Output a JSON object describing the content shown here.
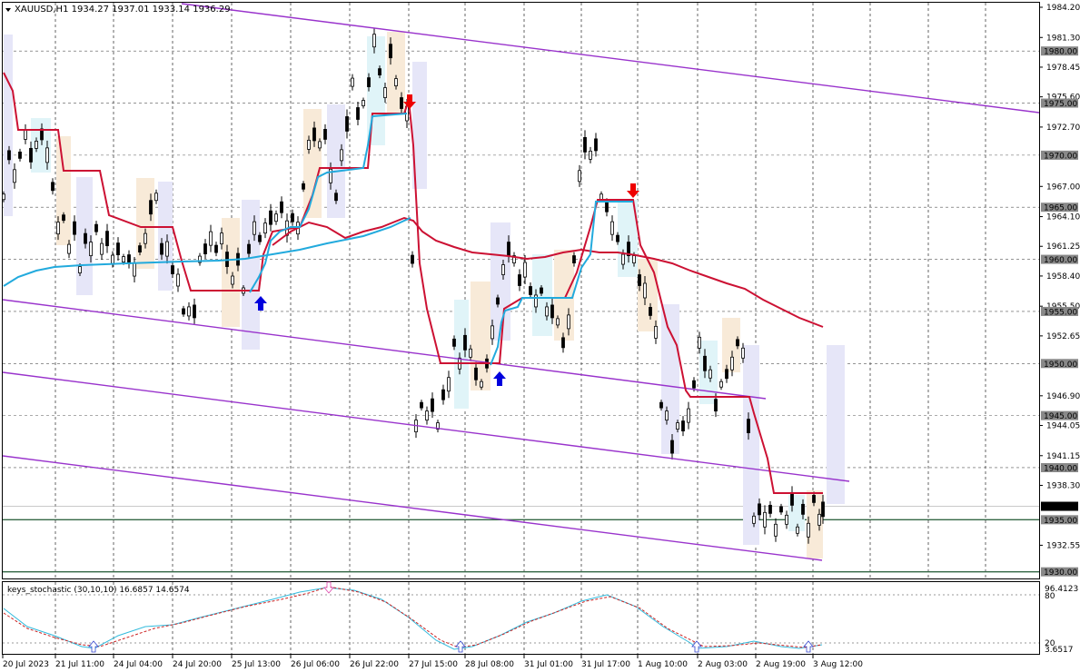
{
  "symbol_bar": {
    "text": "XAUUSD,H1  1934.27 1937.01 1933.14 1936.29"
  },
  "price_axis": {
    "labels": [
      "1984.20",
      "1981.30",
      "1978.45",
      "1975.60",
      "1972.70",
      "1967.00",
      "1964.10",
      "1961.25",
      "1958.40",
      "1955.50",
      "1952.65",
      "1946.90",
      "1944.05",
      "1941.15",
      "1938.30",
      "1932.55"
    ],
    "levels": [
      {
        "text": "1980.00",
        "price": 1980.0
      },
      {
        "text": "1975.00",
        "price": 1975.0
      },
      {
        "text": "1970.00",
        "price": 1970.0
      },
      {
        "text": "1965.00",
        "price": 1965.0
      },
      {
        "text": "1960.00",
        "price": 1960.0
      },
      {
        "text": "1955.00",
        "price": 1955.0
      },
      {
        "text": "1950.00",
        "price": 1950.0
      },
      {
        "text": "1945.00",
        "price": 1945.0
      },
      {
        "text": "1940.00",
        "price": 1940.0
      },
      {
        "text": "1935.00",
        "price": 1935.0
      },
      {
        "text": "1930.00",
        "price": 1930.0
      }
    ],
    "current_price": "1936.29"
  },
  "time_axis": {
    "labels": [
      "20 Jul 2023",
      "21 Jul 11:00",
      "24 Jul 04:00",
      "24 Jul 20:00",
      "25 Jul 13:00",
      "26 Jul 06:00",
      "26 Jul 22:00",
      "27 Jul 15:00",
      "28 Jul 08:00",
      "31 Jul 01:00",
      "31 Jul 17:00",
      "1 Aug 10:00",
      "2 Aug 03:00",
      "2 Aug 19:00",
      "3 Aug 12:00"
    ]
  },
  "indicator": {
    "title": "keys_stochastic (30,10,10) 16.6857 14.6574",
    "scale_labels": [
      "96.4123",
      "80",
      "20",
      "3.6517"
    ]
  },
  "colors": {
    "grid": "#000000",
    "channel": "#9933CC",
    "ma_red": "#CC1133",
    "ma_cyan": "#22AADD",
    "arrow_up": "#0000DD",
    "arrow_down": "#EE0000",
    "green_level": "#336644"
  }
}
